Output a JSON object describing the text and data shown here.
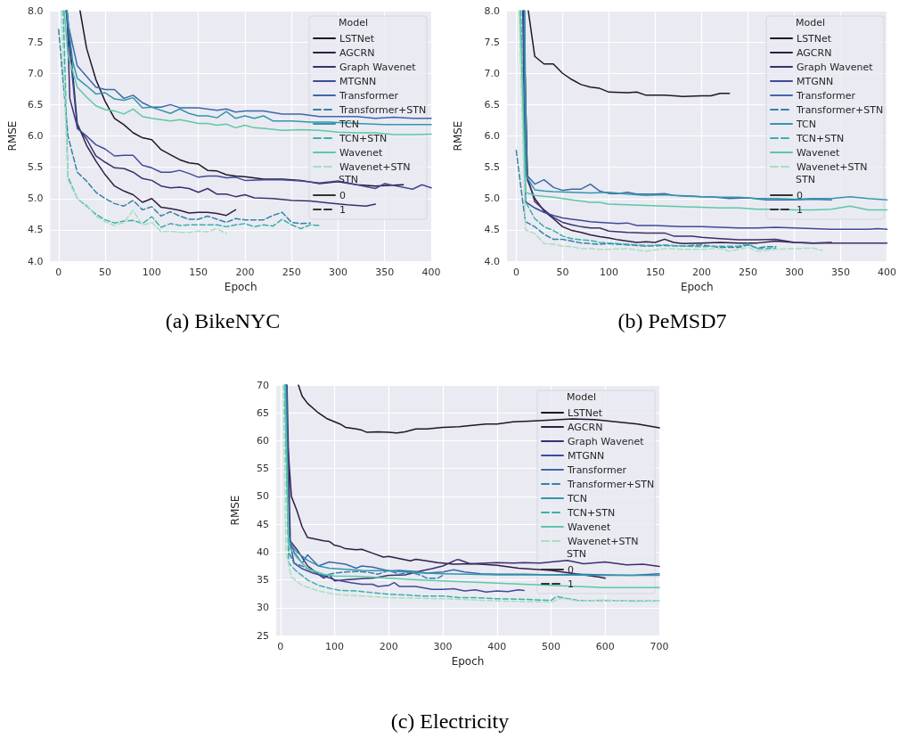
{
  "chart_data": [
    {
      "type": "line",
      "title": "(a) BikeNYC",
      "xlabel": "Epoch",
      "ylabel": "RMSE",
      "legend_title": "Model",
      "annotations": [
        "STN"
      ],
      "legend": "top right",
      "grid": true,
      "marker": "none",
      "xlim": [
        -9,
        400
      ],
      "ylim": [
        4,
        8
      ],
      "xticks": [
        0,
        50,
        100,
        150,
        200,
        250,
        300,
        350,
        400
      ],
      "yticks": [
        {
          "value": 4,
          "label": "4.0"
        },
        {
          "value": 4.5,
          "label": "4.5"
        },
        {
          "value": 5,
          "label": "5.0"
        },
        {
          "value": 5.5,
          "label": "5.5"
        },
        {
          "value": 6,
          "label": "6.0"
        },
        {
          "value": 6.5,
          "label": "6.5"
        },
        {
          "value": 7,
          "label": "7.0"
        },
        {
          "value": 7.5,
          "label": "7.5"
        },
        {
          "value": 8,
          "label": "8.0"
        }
      ],
      "series": [
        {
          "name": "LSTNet",
          "color": "#1e1628",
          "line_style": "solid",
          "x": [
            23,
            30,
            40,
            50,
            60,
            70,
            80,
            90,
            100,
            110,
            120,
            130,
            140,
            150,
            160,
            170,
            180,
            190,
            200,
            220,
            240,
            260,
            280,
            300,
            320,
            340,
            370
          ],
          "values": [
            8,
            7.4,
            6.9,
            6.55,
            6.28,
            6.18,
            6.05,
            5.97,
            5.94,
            5.78,
            5.7,
            5.62,
            5.57,
            5.55,
            5.45,
            5.44,
            5.38,
            5.36,
            5.35,
            5.31,
            5.31,
            5.29,
            5.24,
            5.27,
            5.22,
            5.2,
            5.22
          ]
        },
        {
          "name": "AGCRN",
          "color": "#2e1f45",
          "line_style": "solid",
          "x": [
            9,
            20,
            30,
            40,
            50,
            60,
            70,
            80,
            90,
            100,
            110,
            120,
            130,
            140,
            150,
            160,
            170,
            180,
            190
          ],
          "values": [
            8,
            6.2,
            5.85,
            5.6,
            5.38,
            5.2,
            5.12,
            5.06,
            4.94,
            5,
            4.86,
            4.84,
            4.81,
            4.77,
            4.78,
            4.78,
            4.76,
            4.73,
            4.82
          ]
        },
        {
          "name": "Graph Wavenet",
          "color": "#3b2f6e",
          "line_style": "solid",
          "x": [
            9,
            12,
            20,
            30,
            40,
            50,
            60,
            70,
            80,
            90,
            100,
            110,
            120,
            130,
            140,
            150,
            160,
            170,
            180,
            190,
            200,
            210,
            230,
            250,
            270,
            290,
            310,
            330,
            340
          ],
          "values": [
            8,
            6.6,
            6.15,
            5.95,
            5.68,
            5.58,
            5.49,
            5.48,
            5.42,
            5.32,
            5.29,
            5.2,
            5.17,
            5.18,
            5.16,
            5.1,
            5.16,
            5.07,
            5.07,
            5.03,
            5.06,
            5.01,
            5,
            4.97,
            4.96,
            4.93,
            4.9,
            4.88,
            4.91
          ]
        },
        {
          "name": "MTGNN",
          "color": "#3f4a99",
          "line_style": "solid",
          "x": [
            8,
            20,
            30,
            40,
            50,
            60,
            70,
            80,
            90,
            100,
            110,
            120,
            130,
            140,
            150,
            160,
            170,
            180,
            190,
            200,
            220,
            240,
            260,
            280,
            300,
            320,
            340,
            350,
            380,
            390,
            400
          ],
          "values": [
            8,
            6.12,
            6,
            5.86,
            5.79,
            5.68,
            5.69,
            5.69,
            5.53,
            5.49,
            5.42,
            5.42,
            5.45,
            5.4,
            5.34,
            5.36,
            5.36,
            5.33,
            5.34,
            5.29,
            5.3,
            5.3,
            5.28,
            5.25,
            5.28,
            5.22,
            5.16,
            5.24,
            5.15,
            5.22,
            5.17
          ]
        },
        {
          "name": "Transformer",
          "color": "#3b68a8",
          "line_style": "solid",
          "x": [
            8,
            10,
            20,
            30,
            40,
            50,
            60,
            70,
            80,
            90,
            100,
            110,
            120,
            130,
            150,
            170,
            180,
            190,
            200,
            220,
            240,
            260,
            280,
            300,
            320,
            340,
            360,
            380,
            400
          ],
          "values": [
            8,
            7.8,
            7.12,
            6.95,
            6.78,
            6.74,
            6.74,
            6.6,
            6.65,
            6.53,
            6.46,
            6.46,
            6.5,
            6.45,
            6.45,
            6.41,
            6.43,
            6.38,
            6.4,
            6.4,
            6.35,
            6.35,
            6.31,
            6.31,
            6.31,
            6.28,
            6.3,
            6.28,
            6.28
          ]
        },
        {
          "name": "Transformer+STN",
          "color": "#3681a8",
          "line_style": "dashed",
          "x": [
            0,
            10,
            20,
            30,
            40,
            50,
            60,
            70,
            80,
            90,
            100,
            110,
            120,
            130,
            140,
            150,
            160,
            170,
            180,
            190,
            200,
            220,
            230,
            240,
            250,
            260,
            270
          ],
          "values": [
            7.7,
            6,
            5.42,
            5.28,
            5.1,
            5,
            4.92,
            4.88,
            4.97,
            4.82,
            4.87,
            4.72,
            4.79,
            4.72,
            4.67,
            4.67,
            4.72,
            4.67,
            4.62,
            4.68,
            4.66,
            4.66,
            4.73,
            4.78,
            4.62,
            4.6,
            4.61
          ]
        },
        {
          "name": "TCN",
          "color": "#3397ab",
          "line_style": "solid",
          "x": [
            9,
            15,
            20,
            30,
            40,
            50,
            60,
            70,
            80,
            90,
            100,
            110,
            120,
            130,
            140,
            150,
            160,
            170,
            180,
            190,
            200,
            210,
            220,
            230,
            250,
            270,
            290,
            320,
            350,
            380,
            400
          ],
          "values": [
            8,
            7.2,
            6.92,
            6.8,
            6.67,
            6.69,
            6.59,
            6.57,
            6.61,
            6.45,
            6.46,
            6.41,
            6.36,
            6.43,
            6.36,
            6.32,
            6.32,
            6.29,
            6.39,
            6.28,
            6.32,
            6.28,
            6.32,
            6.24,
            6.24,
            6.22,
            6.22,
            6.2,
            6.18,
            6.18,
            6.18
          ]
        },
        {
          "name": "TCN+STN",
          "color": "#3ab0ab",
          "line_style": "dashed",
          "x": [
            5,
            10,
            20,
            30,
            40,
            50,
            60,
            70,
            80,
            90,
            100,
            110,
            120,
            130,
            140,
            150,
            160,
            170,
            180,
            190,
            200,
            210,
            220,
            230,
            240,
            250,
            260,
            270,
            280
          ],
          "values": [
            8,
            5.35,
            5,
            4.88,
            4.75,
            4.66,
            4.61,
            4.64,
            4.65,
            4.6,
            4.71,
            4.54,
            4.6,
            4.57,
            4.58,
            4.58,
            4.58,
            4.58,
            4.55,
            4.58,
            4.6,
            4.55,
            4.58,
            4.56,
            4.67,
            4.58,
            4.52,
            4.58,
            4.57
          ]
        },
        {
          "name": "Wavenet",
          "color": "#5cc8a6",
          "line_style": "solid",
          "x": [
            6,
            10,
            20,
            30,
            40,
            50,
            60,
            70,
            80,
            90,
            100,
            110,
            120,
            130,
            140,
            150,
            160,
            170,
            180,
            190,
            200,
            210,
            220,
            240,
            260,
            280,
            300,
            320,
            340,
            360,
            380,
            400
          ],
          "values": [
            8,
            7.3,
            6.78,
            6.62,
            6.48,
            6.42,
            6.4,
            6.35,
            6.43,
            6.31,
            6.28,
            6.26,
            6.24,
            6.26,
            6.23,
            6.2,
            6.2,
            6.17,
            6.19,
            6.13,
            6.17,
            6.13,
            6.12,
            6.09,
            6.1,
            6.09,
            6.06,
            6.05,
            6.05,
            6.02,
            6.02,
            6.03
          ]
        },
        {
          "name": "Wavenet+STN",
          "color": "#a6e0bf",
          "line_style": "dashed",
          "x": [
            3,
            10,
            20,
            30,
            40,
            50,
            60,
            70,
            80,
            90,
            100,
            110,
            120,
            130,
            140,
            150,
            160,
            170,
            180
          ],
          "values": [
            8,
            5.3,
            5,
            4.9,
            4.72,
            4.63,
            4.57,
            4.62,
            4.81,
            4.57,
            4.62,
            4.47,
            4.48,
            4.46,
            4.46,
            4.48,
            4.47,
            4.52,
            4.44
          ]
        },
        {
          "name": "0",
          "color": "#333333",
          "line_style": "solid"
        },
        {
          "name": "1",
          "color": "#333333",
          "line_style": "dashed"
        }
      ]
    },
    {
      "type": "line",
      "title": "(b) PeMSD7",
      "xlabel": "Epoch",
      "ylabel": "RMSE",
      "legend_title": "Model",
      "annotations": [
        "STN"
      ],
      "legend": "top right",
      "grid": true,
      "marker": "none",
      "xlim": [
        -10,
        400
      ],
      "ylim": [
        4,
        8
      ],
      "xticks": [
        0,
        50,
        100,
        150,
        200,
        250,
        300,
        350,
        400
      ],
      "yticks": [
        {
          "value": 4,
          "label": "4.0"
        },
        {
          "value": 4.5,
          "label": "4.5"
        },
        {
          "value": 5,
          "label": "5.0"
        },
        {
          "value": 5.5,
          "label": "5.5"
        },
        {
          "value": 6,
          "label": "6.0"
        },
        {
          "value": 6.5,
          "label": "6.5"
        },
        {
          "value": 7,
          "label": "7.0"
        },
        {
          "value": 7.5,
          "label": "7.5"
        },
        {
          "value": 8,
          "label": "8.0"
        }
      ],
      "series": [
        {
          "name": "LSTNet",
          "color": "#1e1628",
          "line_style": "solid",
          "x": [
            13,
            20,
            30,
            40,
            50,
            60,
            70,
            80,
            90,
            100,
            120,
            130,
            140,
            160,
            180,
            200,
            210,
            220,
            230
          ],
          "values": [
            8,
            7.27,
            7.15,
            7.15,
            7,
            6.9,
            6.82,
            6.78,
            6.76,
            6.7,
            6.69,
            6.7,
            6.65,
            6.65,
            6.63,
            6.64,
            6.64,
            6.68,
            6.68
          ]
        },
        {
          "name": "AGCRN",
          "color": "#2e1f45",
          "line_style": "solid",
          "x": [
            8,
            12,
            20,
            30,
            40,
            50,
            60,
            70,
            80,
            90,
            100,
            110,
            120,
            130,
            140,
            150,
            160,
            170,
            180,
            200,
            220,
            240,
            260,
            280,
            300,
            320,
            340
          ],
          "values": [
            8,
            5.3,
            5,
            4.8,
            4.68,
            4.55,
            4.49,
            4.46,
            4.42,
            4.39,
            4.37,
            4.34,
            4.32,
            4.3,
            4.31,
            4.3,
            4.35,
            4.3,
            4.28,
            4.29,
            4.3,
            4.29,
            4.29,
            4.32,
            4.3,
            4.29,
            4.3
          ]
        },
        {
          "name": "Graph Wavenet",
          "color": "#3b2f6e",
          "line_style": "solid",
          "x": [
            8,
            12,
            20,
            30,
            40,
            50,
            60,
            70,
            80,
            90,
            100,
            120,
            140,
            160,
            170,
            190,
            200,
            220,
            240,
            260,
            280,
            300,
            320,
            340,
            400
          ],
          "values": [
            8,
            5.35,
            4.95,
            4.82,
            4.7,
            4.62,
            4.58,
            4.55,
            4.53,
            4.53,
            4.48,
            4.46,
            4.45,
            4.45,
            4.4,
            4.4,
            4.38,
            4.36,
            4.34,
            4.34,
            4.35,
            4.3,
            4.29,
            4.29,
            4.29
          ]
        },
        {
          "name": "MTGNN",
          "color": "#3f4a99",
          "line_style": "solid",
          "x": [
            7,
            10,
            20,
            30,
            40,
            50,
            60,
            70,
            80,
            90,
            110,
            120,
            130,
            150,
            180,
            200,
            220,
            240,
            260,
            280,
            300,
            320,
            340,
            380,
            390,
            400
          ],
          "values": [
            8,
            4.95,
            4.85,
            4.78,
            4.73,
            4.69,
            4.67,
            4.65,
            4.63,
            4.62,
            4.6,
            4.61,
            4.57,
            4.57,
            4.55,
            4.55,
            4.54,
            4.53,
            4.53,
            4.54,
            4.53,
            4.52,
            4.51,
            4.51,
            4.52,
            4.51
          ]
        },
        {
          "name": "Transformer",
          "color": "#3b68a8",
          "line_style": "solid",
          "x": [
            9,
            10,
            20,
            30,
            40,
            50,
            60,
            70,
            80,
            90,
            100,
            110,
            120,
            130,
            150,
            160,
            170,
            190,
            200,
            210,
            230,
            250,
            270,
            300,
            320,
            340
          ],
          "values": [
            8,
            5.4,
            5.23,
            5.3,
            5.18,
            5.13,
            5.15,
            5.15,
            5.23,
            5.12,
            5.08,
            5.08,
            5.1,
            5.07,
            5.07,
            5.08,
            5.05,
            5.04,
            5.03,
            5.03,
            5,
            5.01,
            4.98,
            4.98,
            4.99,
            4.98
          ]
        },
        {
          "name": "Transformer+STN",
          "color": "#3681a8",
          "line_style": "dashed",
          "x": [
            0,
            7,
            10,
            20,
            30,
            40,
            50,
            60,
            70,
            80,
            90,
            100,
            120,
            140,
            160,
            180,
            200,
            220,
            240,
            250,
            260,
            270,
            280
          ],
          "values": [
            5.77,
            4.95,
            4.63,
            4.55,
            4.43,
            4.35,
            4.35,
            4.32,
            4.29,
            4.28,
            4.27,
            4.28,
            4.26,
            4.24,
            4.25,
            4.24,
            4.26,
            4.22,
            4.22,
            4.26,
            4.21,
            4.23,
            4.23
          ]
        },
        {
          "name": "TCN",
          "color": "#3397ab",
          "line_style": "solid",
          "x": [
            9,
            11,
            20,
            30,
            40,
            60,
            80,
            100,
            120,
            140,
            160,
            180,
            200,
            220,
            240,
            260,
            280,
            300,
            320,
            340,
            360,
            380,
            400
          ],
          "values": [
            8,
            5.35,
            5.14,
            5.12,
            5.11,
            5.1,
            5.09,
            5.1,
            5.07,
            5.05,
            5.06,
            5.04,
            5.03,
            5.02,
            5.02,
            5,
            5,
            4.99,
            5,
            5,
            5.03,
            5,
            4.98
          ]
        },
        {
          "name": "TCN+STN",
          "color": "#3ab0ab",
          "line_style": "dashed",
          "x": [
            5,
            10,
            20,
            30,
            40,
            50,
            60,
            70,
            80,
            90,
            100,
            120,
            140,
            160,
            180,
            200,
            220,
            240,
            250,
            260,
            270,
            280
          ],
          "values": [
            8,
            4.95,
            4.68,
            4.55,
            4.49,
            4.4,
            4.36,
            4.34,
            4.33,
            4.3,
            4.29,
            4.27,
            4.25,
            4.26,
            4.24,
            4.23,
            4.24,
            4.24,
            4.28,
            4.2,
            4.2,
            4.21
          ]
        },
        {
          "name": "Wavenet",
          "color": "#5cc8a6",
          "line_style": "solid",
          "x": [
            4,
            10,
            20,
            40,
            60,
            80,
            90,
            100,
            120,
            140,
            160,
            180,
            200,
            220,
            240,
            260,
            280,
            300,
            320,
            340,
            360,
            380,
            400
          ],
          "values": [
            8,
            5.1,
            5.05,
            5.02,
            4.98,
            4.94,
            4.94,
            4.91,
            4.9,
            4.89,
            4.88,
            4.87,
            4.86,
            4.85,
            4.85,
            4.83,
            4.83,
            4.82,
            4.82,
            4.83,
            4.88,
            4.82,
            4.82
          ]
        },
        {
          "name": "Wavenet+STN",
          "color": "#a6e0bf",
          "line_style": "dashed",
          "x": [
            3,
            10,
            20,
            30,
            40,
            50,
            60,
            70,
            80,
            90,
            100,
            120,
            140,
            160,
            180,
            200,
            220,
            230,
            240,
            250,
            260,
            270,
            280,
            300,
            320,
            330
          ],
          "values": [
            8,
            4.5,
            4.44,
            4.28,
            4.27,
            4.24,
            4.23,
            4.2,
            4.2,
            4.19,
            4.19,
            4.2,
            4.16,
            4.2,
            4.19,
            4.19,
            4.2,
            4.16,
            4.19,
            4.22,
            4.16,
            4.17,
            4.19,
            4.2,
            4.21,
            4.17
          ]
        },
        {
          "name": "0",
          "color": "#333333",
          "line_style": "solid"
        },
        {
          "name": "1",
          "color": "#333333",
          "line_style": "dashed"
        }
      ]
    },
    {
      "type": "line",
      "title": "(c) Electricity",
      "xlabel": "Epoch",
      "ylabel": "RMSE",
      "legend_title": "Model",
      "annotations": [
        "STN"
      ],
      "legend": "top right",
      "grid": true,
      "marker": "none",
      "xlim": [
        -8,
        700
      ],
      "ylim": [
        25,
        70
      ],
      "xticks": [
        0,
        100,
        200,
        300,
        400,
        500,
        600,
        700
      ],
      "yticks": [
        25,
        30,
        35,
        40,
        45,
        50,
        55,
        60,
        65,
        70
      ],
      "series": [
        {
          "name": "LSTNet",
          "color": "#1e1628",
          "line_style": "solid",
          "x": [
            33,
            40,
            50,
            70,
            85,
            110,
            120,
            140,
            150,
            160,
            180,
            200,
            215,
            230,
            250,
            270,
            300,
            330,
            350,
            380,
            400,
            430,
            460,
            500,
            540,
            580,
            620,
            660,
            700
          ],
          "values": [
            70,
            68,
            66.7,
            65,
            64,
            63,
            62.4,
            62.1,
            61.9,
            61.5,
            61.6,
            61.5,
            61.4,
            61.6,
            62.1,
            62.1,
            62.4,
            62.5,
            62.7,
            63,
            63,
            63.4,
            63.5,
            63.7,
            63.9,
            63.8,
            63.4,
            63,
            62.3
          ]
        },
        {
          "name": "AGCRN",
          "color": "#2e1f45",
          "line_style": "solid",
          "x": [
            10,
            13,
            20,
            30,
            40,
            50,
            60,
            80,
            90,
            100,
            110,
            120,
            140,
            150,
            170,
            190,
            200,
            220,
            240,
            250,
            270,
            290,
            300,
            320,
            350,
            370,
            400,
            440,
            470,
            500,
            530,
            560,
            590,
            600
          ],
          "values": [
            70,
            60,
            50,
            47.5,
            44.5,
            42.6,
            42.4,
            42,
            41.9,
            41.2,
            41,
            40.6,
            40.4,
            40.5,
            39.8,
            39.1,
            39.2,
            38.8,
            38.4,
            38.7,
            38.4,
            38.1,
            38,
            37.8,
            37.9,
            37.8,
            37.6,
            37.1,
            36.9,
            36.7,
            36.3,
            35.9,
            35.5,
            35.3
          ]
        },
        {
          "name": "Graph Wavenet",
          "color": "#3b2f6e",
          "line_style": "solid",
          "x": [
            12,
            18,
            30,
            50,
            70,
            80,
            90,
            100,
            120,
            150,
            170,
            200,
            230,
            260,
            280,
            300,
            325,
            330,
            350,
            380,
            400,
            430,
            450,
            480,
            500,
            530,
            560,
            600,
            640,
            670,
            700
          ],
          "values": [
            70,
            42,
            40.5,
            37.5,
            36,
            35.3,
            35.9,
            34.8,
            35,
            35.2,
            35.3,
            35.8,
            35.9,
            36.6,
            37,
            37.5,
            38.6,
            38.6,
            37.9,
            38,
            38.1,
            38,
            38.1,
            38,
            38.2,
            38.5,
            37.9,
            38.2,
            37.7,
            37.8,
            37.4
          ]
        },
        {
          "name": "MTGNN",
          "color": "#3f4a99",
          "line_style": "solid",
          "x": [
            11,
            15,
            25,
            40,
            60,
            80,
            100,
            130,
            150,
            170,
            180,
            200,
            210,
            220,
            250,
            280,
            300,
            320,
            340,
            360,
            380,
            400,
            420,
            440,
            450
          ],
          "values": [
            70,
            43,
            38,
            37,
            36.2,
            35.7,
            35,
            34.5,
            34.2,
            34.2,
            33.8,
            34,
            34.5,
            33.8,
            33.8,
            33.3,
            33.3,
            33.4,
            33,
            33.2,
            32.8,
            33,
            32.9,
            33.2,
            33.1
          ]
        },
        {
          "name": "Transformer",
          "color": "#3b68a8",
          "line_style": "solid",
          "x": [
            11,
            15,
            25,
            40,
            50,
            70,
            90,
            120,
            140,
            150,
            170,
            200,
            220,
            250,
            270,
            300,
            320,
            340,
            370,
            400,
            450,
            500,
            550,
            600,
            650,
            700
          ],
          "values": [
            70,
            43,
            40,
            38,
            39.5,
            37.5,
            38.2,
            37.8,
            37.1,
            37.5,
            37.3,
            36.6,
            36.7,
            36.5,
            36.2,
            36.4,
            36.8,
            36.4,
            36.1,
            36,
            36,
            35.9,
            36,
            35.9,
            35.8,
            36.1
          ]
        },
        {
          "name": "Transformer+STN",
          "color": "#3681a8",
          "line_style": "dashed",
          "x": [
            9,
            15,
            25,
            40,
            60,
            80,
            100,
            120,
            140,
            160,
            180,
            200,
            220,
            240,
            260,
            270,
            290,
            300
          ],
          "values": [
            70,
            40,
            38,
            37.5,
            36.5,
            35.8,
            36.2,
            36.4,
            36.5,
            36.4,
            36,
            36.7,
            36,
            36.4,
            35.8,
            35.3,
            35.3,
            35.8
          ]
        },
        {
          "name": "TCN",
          "color": "#3397ab",
          "line_style": "solid",
          "x": [
            9,
            15,
            30,
            50,
            70,
            90,
            120,
            150,
            200,
            250,
            300,
            350,
            400,
            500,
            600,
            700
          ],
          "values": [
            70,
            42,
            40,
            38.5,
            37.5,
            37.1,
            36.9,
            36.7,
            36.6,
            36.3,
            36.1,
            36,
            35.9,
            35.9,
            35.8,
            35.8
          ]
        },
        {
          "name": "TCN+STN",
          "color": "#3ab0ab",
          "line_style": "dashed",
          "x": [
            7,
            15,
            30,
            50,
            70,
            90,
            110,
            140,
            170,
            200,
            230,
            260,
            300,
            330,
            360,
            400,
            450,
            500,
            510,
            550,
            600,
            650,
            700
          ],
          "values": [
            70,
            38,
            36.5,
            35,
            34,
            33.5,
            33.1,
            33,
            32.7,
            32.4,
            32.3,
            32.1,
            32.1,
            31.8,
            31.8,
            31.6,
            31.5,
            31.3,
            32,
            31.3,
            31.3,
            31.2,
            31.2
          ]
        },
        {
          "name": "Wavenet",
          "color": "#5cc8a6",
          "line_style": "solid",
          "x": [
            8,
            15,
            30,
            50,
            80,
            100,
            150,
            200,
            250,
            300,
            350,
            400,
            450,
            500,
            550,
            600,
            700
          ],
          "values": [
            70,
            41,
            39,
            37,
            36,
            35.7,
            35.6,
            35.3,
            35,
            34.8,
            34.6,
            34.4,
            34.2,
            34,
            33.8,
            33.6,
            33.6
          ]
        },
        {
          "name": "Wavenet+STN",
          "color": "#a6e0bf",
          "line_style": "dashed",
          "x": [
            5,
            10,
            20,
            40,
            70,
            100,
            150,
            200,
            300,
            350,
            400,
            500,
            520,
            550,
            600,
            650,
            700
          ],
          "values": [
            70,
            40,
            35.5,
            34,
            33,
            32.4,
            32.1,
            31.8,
            31.6,
            31.4,
            31.2,
            31,
            31.7,
            31.2,
            31.4,
            31.1,
            31.2
          ]
        },
        {
          "name": "0",
          "color": "#333333",
          "line_style": "solid"
        },
        {
          "name": "1",
          "color": "#333333",
          "line_style": "dashed"
        }
      ]
    }
  ]
}
